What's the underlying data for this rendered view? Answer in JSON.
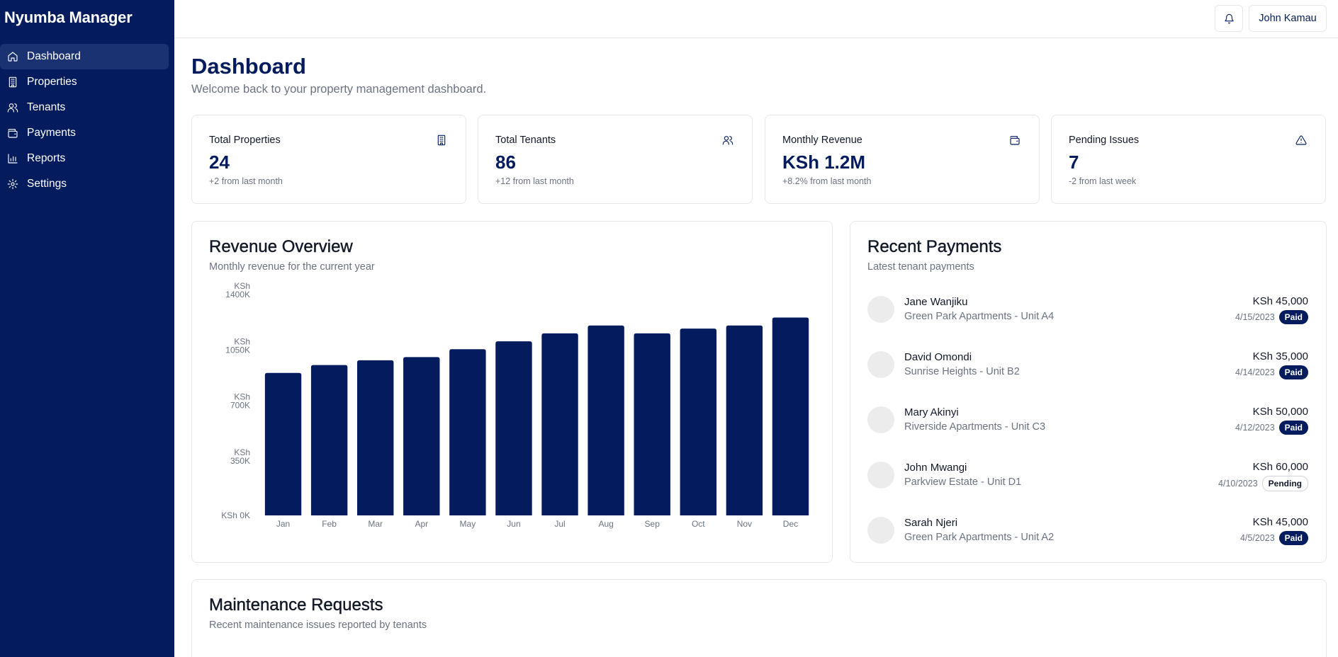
{
  "app": {
    "brand": "Nyumba Manager"
  },
  "sidebar": {
    "items": [
      {
        "label": "Dashboard",
        "icon": "home-icon",
        "active": true
      },
      {
        "label": "Properties",
        "icon": "building-icon",
        "active": false
      },
      {
        "label": "Tenants",
        "icon": "users-icon",
        "active": false
      },
      {
        "label": "Payments",
        "icon": "wallet-icon",
        "active": false
      },
      {
        "label": "Reports",
        "icon": "bar-chart-icon",
        "active": false
      },
      {
        "label": "Settings",
        "icon": "gear-icon",
        "active": false
      }
    ]
  },
  "header": {
    "user_name": "John Kamau",
    "bell_icon": "bell-icon"
  },
  "page": {
    "title": "Dashboard",
    "subtitle": "Welcome back to your property management dashboard."
  },
  "stats": [
    {
      "label": "Total Properties",
      "value": "24",
      "change": "+2 from last month",
      "icon": "building-icon"
    },
    {
      "label": "Total Tenants",
      "value": "86",
      "change": "+12 from last month",
      "icon": "users-icon"
    },
    {
      "label": "Monthly Revenue",
      "value": "KSh 1.2M",
      "change": "+8.2% from last month",
      "icon": "wallet-icon"
    },
    {
      "label": "Pending Issues",
      "value": "7",
      "change": "-2 from last week",
      "icon": "alert-triangle-icon"
    }
  ],
  "revenue": {
    "title": "Revenue Overview",
    "subtitle": "Monthly revenue for the current year"
  },
  "chart_data": {
    "type": "bar",
    "categories": [
      "Jan",
      "Feb",
      "Mar",
      "Apr",
      "May",
      "Jun",
      "Jul",
      "Aug",
      "Sep",
      "Oct",
      "Nov",
      "Dec"
    ],
    "values": [
      900,
      950,
      980,
      1000,
      1050,
      1100,
      1150,
      1200,
      1150,
      1180,
      1200,
      1250
    ],
    "ytick_values": [
      0,
      350,
      700,
      1050,
      1400
    ],
    "ytick_labels": [
      "KSh 0K",
      "KSh 350K",
      "KSh 700K",
      "KSh 1050K",
      "KSh 1400K"
    ],
    "ylim": [
      0,
      1400
    ],
    "bar_color": "#041c5e",
    "grid": false
  },
  "payments": {
    "title": "Recent Payments",
    "subtitle": "Latest tenant payments",
    "rows": [
      {
        "name": "Jane Wanjiku",
        "property": "Green Park Apartments - Unit A4",
        "amount": "KSh 45,000",
        "date": "4/15/2023",
        "status": "Paid"
      },
      {
        "name": "David Omondi",
        "property": "Sunrise Heights - Unit B2",
        "amount": "KSh 35,000",
        "date": "4/14/2023",
        "status": "Paid"
      },
      {
        "name": "Mary Akinyi",
        "property": "Riverside Apartments - Unit C3",
        "amount": "KSh 50,000",
        "date": "4/12/2023",
        "status": "Paid"
      },
      {
        "name": "John Mwangi",
        "property": "Parkview Estate - Unit D1",
        "amount": "KSh 60,000",
        "date": "4/10/2023",
        "status": "Pending"
      },
      {
        "name": "Sarah Njeri",
        "property": "Green Park Apartments - Unit A2",
        "amount": "KSh 45,000",
        "date": "4/5/2023",
        "status": "Paid"
      }
    ]
  },
  "maintenance": {
    "title": "Maintenance Requests",
    "subtitle": "Recent maintenance issues reported by tenants"
  }
}
